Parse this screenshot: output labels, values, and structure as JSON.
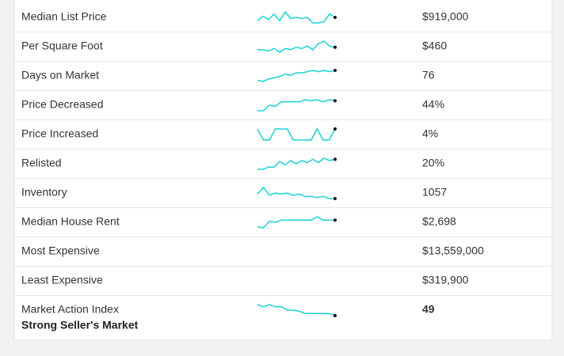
{
  "rows": [
    {
      "label": "Median List Price",
      "trend": [
        2,
        6,
        3,
        8,
        2,
        10,
        4,
        5,
        4,
        5,
        0,
        0,
        1,
        8,
        5
      ],
      "value": "$919,000"
    },
    {
      "label": "Per Square Foot",
      "trend": [
        3,
        3,
        2,
        4,
        1,
        4,
        3,
        5,
        4,
        6,
        3,
        8,
        10,
        6,
        5
      ],
      "value": "$460"
    },
    {
      "label": "Days on Market",
      "trend": [
        1,
        0,
        2,
        3,
        4,
        6,
        5,
        7,
        7,
        8,
        9,
        8,
        9,
        8,
        9
      ],
      "value": "76"
    },
    {
      "label": "Price Decreased",
      "trend": [
        0,
        0,
        5,
        4,
        8,
        8,
        8,
        8,
        10,
        9,
        10,
        8,
        10,
        9
      ],
      "value": "44%"
    },
    {
      "label": "Price Increased",
      "trend": [
        10,
        0,
        0,
        10,
        10,
        10,
        0,
        0,
        0,
        0,
        10,
        0,
        0,
        10
      ],
      "value": "4%"
    },
    {
      "label": "Relisted",
      "trend": [
        0,
        0,
        2,
        2,
        7,
        4,
        8,
        5,
        8,
        6,
        9,
        6,
        10,
        8,
        9
      ],
      "value": "20%"
    },
    {
      "label": "Inventory",
      "trend": [
        4,
        10,
        3,
        5,
        4,
        5,
        3,
        4,
        2,
        2,
        1,
        2,
        0,
        0
      ],
      "value": "1057"
    },
    {
      "label": "Median House Rent",
      "trend": [
        1,
        0,
        6,
        5,
        7,
        7,
        7,
        7,
        7,
        7,
        10,
        7,
        7,
        7
      ],
      "value": "$2,698"
    },
    {
      "label": "Most Expensive",
      "value": "$13,559,000"
    },
    {
      "label": "Least Expensive",
      "value": "$319,900"
    },
    {
      "label": "Market Action Index",
      "sublabel": "Strong Seller's Market",
      "trend": [
        10,
        8,
        10,
        8,
        8,
        5,
        5,
        4,
        2,
        2,
        2,
        2,
        2,
        0
      ],
      "value": "49"
    }
  ]
}
